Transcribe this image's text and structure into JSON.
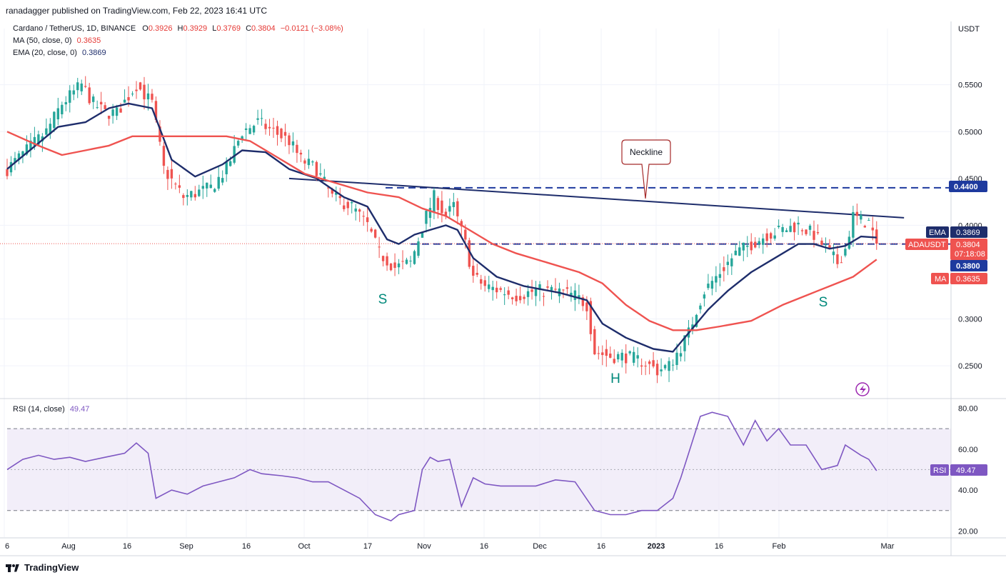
{
  "publisher": "ranadagger published on TradingView.com, Feb 22, 2023 16:41 UTC",
  "legend": {
    "symbol": "Cardano / TetherUS, 1D, BINANCE",
    "o_label": "O",
    "o": "0.3926",
    "h_label": "H",
    "h": "0.3929",
    "l_label": "L",
    "l": "0.3769",
    "c_label": "C",
    "c": "0.3804",
    "change": "−0.0121 (−3.08%)",
    "ma_label": "MA (50, close, 0)",
    "ma_value": "0.3635",
    "ema_label": "EMA (20, close, 0)",
    "ema_value": "0.3869"
  },
  "rsi_legend": {
    "label": "RSI (14, close)",
    "value": "49.47"
  },
  "footer": {
    "brand": "TradingView"
  },
  "colors": {
    "up": "#26a69a",
    "down": "#ef5350",
    "ema": "#1e2d6b",
    "ma": "#ef5350",
    "rsi": "#7e57c2",
    "rsi_band": "#ede7f6",
    "level": "#1e3a9e",
    "grid": "#f0f3fa"
  },
  "chart_data": [
    {
      "type": "candlestick",
      "title": "Cardano / TetherUS, 1D, BINANCE",
      "currency": "USDT",
      "xlabels": [
        "6",
        "Aug",
        "16",
        "Sep",
        "16",
        "Oct",
        "17",
        "Nov",
        "16",
        "Dec",
        "16",
        "2023",
        "16",
        "Feb",
        "Mar"
      ],
      "y_ticks": [
        "0.5500",
        "0.5000",
        "0.4500",
        "0.4000",
        "0.3000",
        "0.2500"
      ],
      "ylim": [
        0.215,
        0.61
      ],
      "price_points": [
        [
          0,
          0.46
        ],
        [
          10,
          0.5
        ],
        [
          14,
          0.53
        ],
        [
          19,
          0.55
        ],
        [
          22,
          0.53
        ],
        [
          25,
          0.52
        ],
        [
          28,
          0.52
        ],
        [
          33,
          0.55
        ],
        [
          37,
          0.53
        ],
        [
          40,
          0.46
        ],
        [
          45,
          0.43
        ],
        [
          52,
          0.44
        ],
        [
          56,
          0.46
        ],
        [
          60,
          0.5
        ],
        [
          64,
          0.51
        ],
        [
          68,
          0.5
        ],
        [
          72,
          0.49
        ],
        [
          75,
          0.47
        ],
        [
          79,
          0.46
        ],
        [
          83,
          0.43
        ],
        [
          88,
          0.42
        ],
        [
          92,
          0.4
        ],
        [
          95,
          0.37
        ],
        [
          99,
          0.355
        ],
        [
          103,
          0.36
        ],
        [
          107,
          0.41
        ],
        [
          109,
          0.43
        ],
        [
          112,
          0.41
        ],
        [
          114,
          0.42
        ],
        [
          117,
          0.38
        ],
        [
          119,
          0.345
        ],
        [
          122,
          0.335
        ],
        [
          126,
          0.33
        ],
        [
          130,
          0.325
        ],
        [
          135,
          0.33
        ],
        [
          140,
          0.33
        ],
        [
          145,
          0.325
        ],
        [
          148,
          0.315
        ],
        [
          150,
          0.265
        ],
        [
          154,
          0.26
        ],
        [
          158,
          0.26
        ],
        [
          162,
          0.255
        ],
        [
          166,
          0.245
        ],
        [
          169,
          0.25
        ],
        [
          172,
          0.27
        ],
        [
          174,
          0.285
        ],
        [
          176,
          0.31
        ],
        [
          178,
          0.33
        ],
        [
          182,
          0.35
        ],
        [
          186,
          0.37
        ],
        [
          190,
          0.38
        ],
        [
          194,
          0.39
        ],
        [
          198,
          0.395
        ],
        [
          202,
          0.4
        ],
        [
          206,
          0.39
        ],
        [
          210,
          0.37
        ],
        [
          212,
          0.36
        ],
        [
          214,
          0.375
        ],
        [
          216,
          0.41
        ],
        [
          218,
          0.405
        ],
        [
          220,
          0.403
        ],
        [
          222,
          0.3804
        ]
      ],
      "series": [
        {
          "name": "EMA",
          "values": [
            [
              0,
              0.46
            ],
            [
              13,
              0.505
            ],
            [
              20,
              0.51
            ],
            [
              26,
              0.525
            ],
            [
              31,
              0.53
            ],
            [
              37,
              0.525
            ],
            [
              42,
              0.47
            ],
            [
              48,
              0.452
            ],
            [
              55,
              0.465
            ],
            [
              60,
              0.48
            ],
            [
              66,
              0.478
            ],
            [
              72,
              0.46
            ],
            [
              79,
              0.45
            ],
            [
              86,
              0.43
            ],
            [
              92,
              0.42
            ],
            [
              97,
              0.385
            ],
            [
              100,
              0.38
            ],
            [
              104,
              0.39
            ],
            [
              108,
              0.395
            ],
            [
              112,
              0.4
            ],
            [
              115,
              0.395
            ],
            [
              119,
              0.365
            ],
            [
              125,
              0.345
            ],
            [
              132,
              0.335
            ],
            [
              141,
              0.328
            ],
            [
              148,
              0.32
            ],
            [
              152,
              0.295
            ],
            [
              158,
              0.28
            ],
            [
              165,
              0.268
            ],
            [
              170,
              0.265
            ],
            [
              175,
              0.29
            ],
            [
              179,
              0.31
            ],
            [
              184,
              0.33
            ],
            [
              190,
              0.35
            ],
            [
              196,
              0.365
            ],
            [
              202,
              0.38
            ],
            [
              206,
              0.38
            ],
            [
              210,
              0.375
            ],
            [
              214,
              0.378
            ],
            [
              218,
              0.388
            ],
            [
              222,
              0.3869
            ]
          ]
        },
        {
          "name": "MA",
          "values": [
            [
              0,
              0.5
            ],
            [
              8,
              0.485
            ],
            [
              14,
              0.475
            ],
            [
              20,
              0.48
            ],
            [
              26,
              0.485
            ],
            [
              32,
              0.495
            ],
            [
              38,
              0.495
            ],
            [
              48,
              0.495
            ],
            [
              56,
              0.495
            ],
            [
              62,
              0.49
            ],
            [
              68,
              0.475
            ],
            [
              76,
              0.455
            ],
            [
              84,
              0.445
            ],
            [
              92,
              0.435
            ],
            [
              100,
              0.43
            ],
            [
              106,
              0.418
            ],
            [
              112,
              0.41
            ],
            [
              118,
              0.395
            ],
            [
              124,
              0.38
            ],
            [
              130,
              0.37
            ],
            [
              138,
              0.36
            ],
            [
              146,
              0.35
            ],
            [
              152,
              0.338
            ],
            [
              158,
              0.315
            ],
            [
              164,
              0.298
            ],
            [
              170,
              0.288
            ],
            [
              176,
              0.288
            ],
            [
              182,
              0.292
            ],
            [
              190,
              0.298
            ],
            [
              198,
              0.315
            ],
            [
              204,
              0.325
            ],
            [
              210,
              0.335
            ],
            [
              216,
              0.345
            ],
            [
              222,
              0.3635
            ]
          ]
        }
      ],
      "levels": [
        0.44,
        0.38
      ],
      "neckline": [
        [
          72,
          0.45
        ],
        [
          229,
          0.408
        ]
      ],
      "annotations": {
        "neckline": "Neckline",
        "s_left": "S",
        "head": "H",
        "s_right": "S"
      },
      "price_labels": [
        {
          "label": "",
          "value": "0.4400"
        },
        {
          "label": "EMA",
          "value": "0.3869"
        },
        {
          "label": "ADAUSDT",
          "value": "0.3804",
          "countdown": "07:18:08"
        },
        {
          "label": "",
          "value": "0.3800"
        },
        {
          "label": "MA",
          "value": "0.3635"
        }
      ]
    },
    {
      "type": "line",
      "title": "RSI (14, close)",
      "y_ticks": [
        "80.00",
        "60.00",
        "40.00",
        "20.00"
      ],
      "ylim": [
        17,
        84
      ],
      "band": [
        30,
        70
      ],
      "midline": 50,
      "last_label": "RSI",
      "last_value": "49.47",
      "series": [
        {
          "name": "RSI",
          "values": [
            [
              0,
              50
            ],
            [
              4,
              55
            ],
            [
              8,
              57
            ],
            [
              12,
              55
            ],
            [
              16,
              56
            ],
            [
              20,
              54
            ],
            [
              25,
              56
            ],
            [
              30,
              58
            ],
            [
              33,
              63
            ],
            [
              36,
              58
            ],
            [
              38,
              36
            ],
            [
              42,
              40
            ],
            [
              46,
              38
            ],
            [
              50,
              42
            ],
            [
              54,
              44
            ],
            [
              58,
              46
            ],
            [
              62,
              50
            ],
            [
              65,
              48
            ],
            [
              70,
              47
            ],
            [
              74,
              46
            ],
            [
              78,
              44
            ],
            [
              82,
              44
            ],
            [
              86,
              40
            ],
            [
              90,
              36
            ],
            [
              94,
              28
            ],
            [
              98,
              25
            ],
            [
              100,
              28
            ],
            [
              104,
              30
            ],
            [
              106,
              50
            ],
            [
              108,
              56
            ],
            [
              110,
              54
            ],
            [
              113,
              55
            ],
            [
              116,
              32
            ],
            [
              119,
              46
            ],
            [
              122,
              43
            ],
            [
              126,
              42
            ],
            [
              130,
              42
            ],
            [
              135,
              42
            ],
            [
              140,
              45
            ],
            [
              145,
              44
            ],
            [
              150,
              30
            ],
            [
              154,
              28
            ],
            [
              158,
              28
            ],
            [
              162,
              30
            ],
            [
              166,
              30
            ],
            [
              170,
              36
            ],
            [
              172,
              46
            ],
            [
              174,
              58
            ],
            [
              177,
              76
            ],
            [
              180,
              78
            ],
            [
              184,
              76
            ],
            [
              188,
              62
            ],
            [
              191,
              74
            ],
            [
              194,
              64
            ],
            [
              197,
              70
            ],
            [
              200,
              62
            ],
            [
              204,
              62
            ],
            [
              208,
              50
            ],
            [
              212,
              52
            ],
            [
              214,
              62
            ],
            [
              218,
              57
            ],
            [
              220,
              55
            ],
            [
              222,
              49.47
            ]
          ]
        }
      ]
    }
  ]
}
